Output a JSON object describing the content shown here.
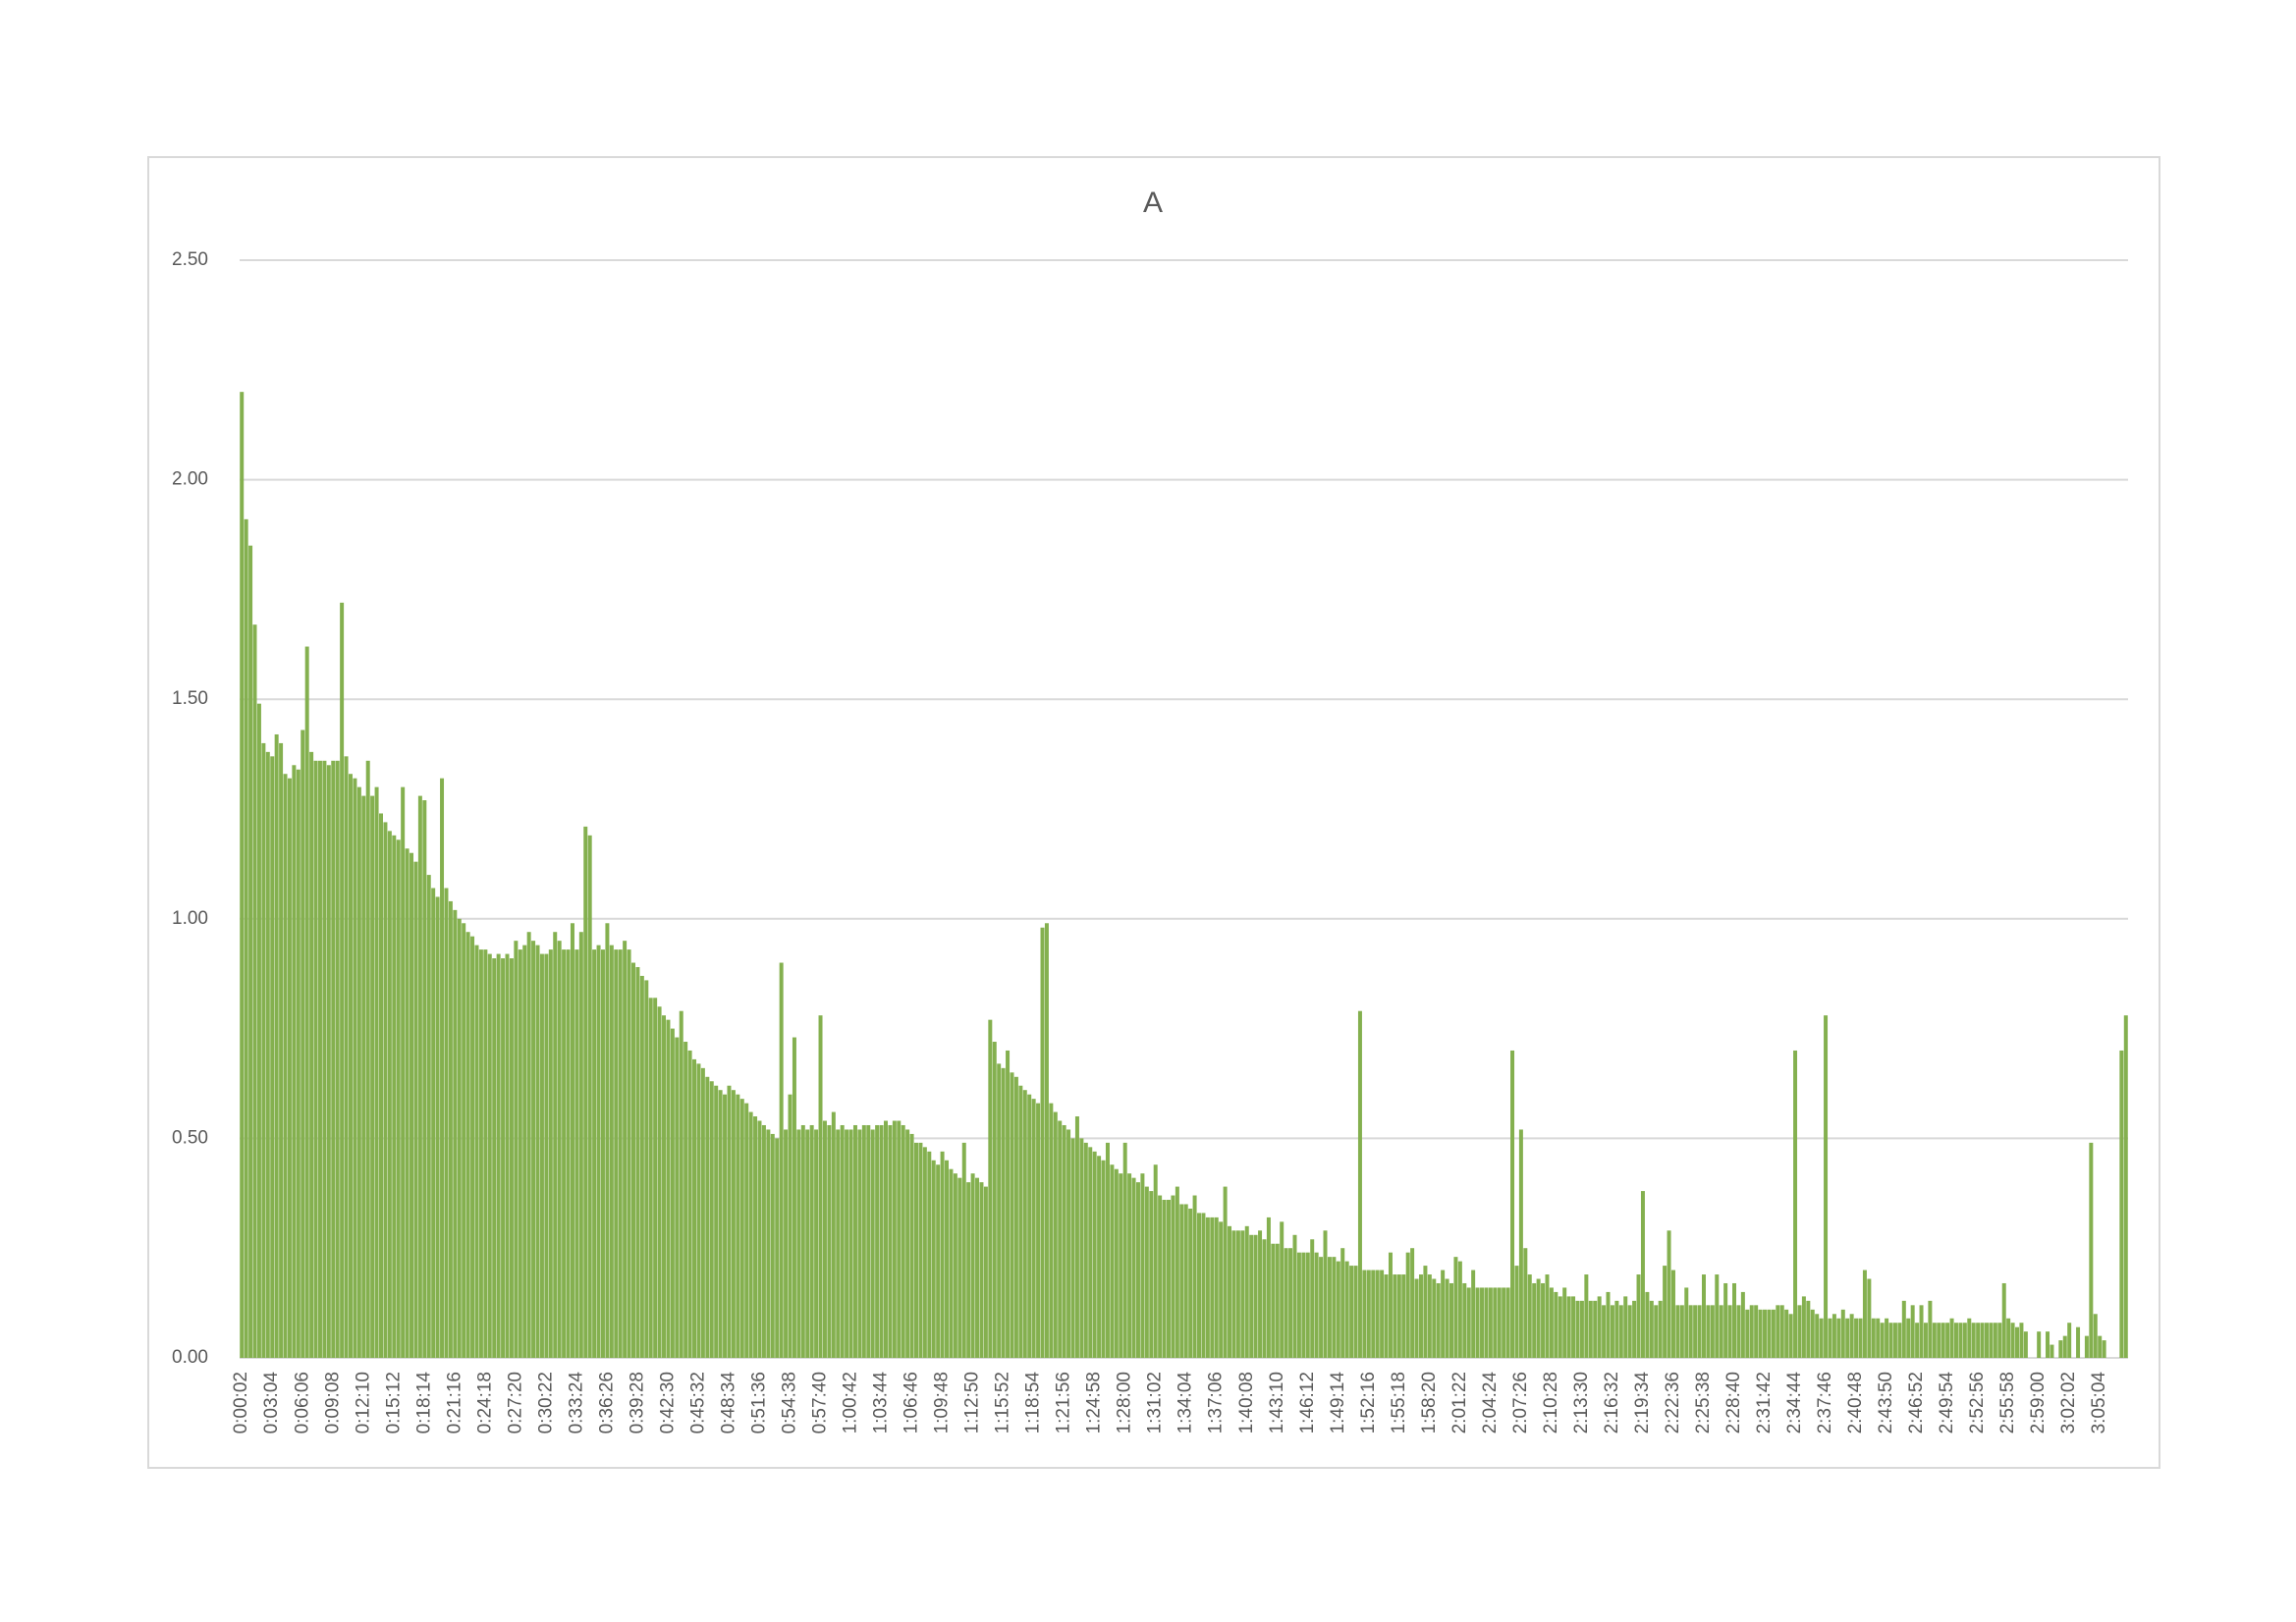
{
  "chart_data": {
    "type": "bar",
    "title": "A",
    "color": "#84b04f",
    "grid": true,
    "ylim": [
      0,
      2.5
    ],
    "yticks": [
      {
        "value": 0,
        "label": "0.00"
      },
      {
        "value": 0.5,
        "label": "0.50"
      },
      {
        "value": 1,
        "label": "1.00"
      },
      {
        "value": 1.5,
        "label": "1.50"
      },
      {
        "value": 2,
        "label": "2.00"
      },
      {
        "value": 2.5,
        "label": "2.50"
      }
    ],
    "categories": [
      "0:00:02",
      null,
      null,
      null,
      null,
      null,
      null,
      "0:03:04",
      null,
      null,
      null,
      null,
      null,
      null,
      "0:06:06",
      null,
      null,
      null,
      null,
      null,
      null,
      "0:09:08",
      null,
      null,
      null,
      null,
      null,
      null,
      "0:12:10",
      null,
      null,
      null,
      null,
      null,
      null,
      "0:15:12",
      null,
      null,
      null,
      null,
      null,
      null,
      "0:18:14",
      null,
      null,
      null,
      null,
      null,
      null,
      "0:21:16",
      null,
      null,
      null,
      null,
      null,
      null,
      "0:24:18",
      null,
      null,
      null,
      null,
      null,
      null,
      "0:27:20",
      null,
      null,
      null,
      null,
      null,
      null,
      "0:30:22",
      null,
      null,
      null,
      null,
      null,
      null,
      "0:33:24",
      null,
      null,
      null,
      null,
      null,
      null,
      "0:36:26",
      null,
      null,
      null,
      null,
      null,
      null,
      "0:39:28",
      null,
      null,
      null,
      null,
      null,
      null,
      "0:42:30",
      null,
      null,
      null,
      null,
      null,
      null,
      "0:45:32",
      null,
      null,
      null,
      null,
      null,
      null,
      "0:48:34",
      null,
      null,
      null,
      null,
      null,
      null,
      "0:51:36",
      null,
      null,
      null,
      null,
      null,
      null,
      "0:54:38",
      null,
      null,
      null,
      null,
      null,
      null,
      "0:57:40",
      null,
      null,
      null,
      null,
      null,
      null,
      "1:00:42",
      null,
      null,
      null,
      null,
      null,
      null,
      "1:03:44",
      null,
      null,
      null,
      null,
      null,
      null,
      "1:06:46",
      null,
      null,
      null,
      null,
      null,
      null,
      "1:09:48",
      null,
      null,
      null,
      null,
      null,
      null,
      "1:12:50",
      null,
      null,
      null,
      null,
      null,
      null,
      "1:15:52",
      null,
      null,
      null,
      null,
      null,
      null,
      "1:18:54",
      null,
      null,
      null,
      null,
      null,
      null,
      "1:21:56",
      null,
      null,
      null,
      null,
      null,
      null,
      "1:24:58",
      null,
      null,
      null,
      null,
      null,
      null,
      "1:28:00",
      null,
      null,
      null,
      null,
      null,
      null,
      "1:31:02",
      null,
      null,
      null,
      null,
      null,
      null,
      "1:34:04",
      null,
      null,
      null,
      null,
      null,
      null,
      "1:37:06",
      null,
      null,
      null,
      null,
      null,
      null,
      "1:40:08",
      null,
      null,
      null,
      null,
      null,
      null,
      "1:43:10",
      null,
      null,
      null,
      null,
      null,
      null,
      "1:46:12",
      null,
      null,
      null,
      null,
      null,
      null,
      "1:49:14",
      null,
      null,
      null,
      null,
      null,
      null,
      "1:52:16",
      null,
      null,
      null,
      null,
      null,
      null,
      "1:55:18",
      null,
      null,
      null,
      null,
      null,
      null,
      "1:58:20",
      null,
      null,
      null,
      null,
      null,
      null,
      "2:01:22",
      null,
      null,
      null,
      null,
      null,
      null,
      "2:04:24",
      null,
      null,
      null,
      null,
      null,
      null,
      "2:07:26",
      null,
      null,
      null,
      null,
      null,
      null,
      "2:10:28",
      null,
      null,
      null,
      null,
      null,
      null,
      "2:13:30",
      null,
      null,
      null,
      null,
      null,
      null,
      "2:16:32",
      null,
      null,
      null,
      null,
      null,
      null,
      "2:19:34",
      null,
      null,
      null,
      null,
      null,
      null,
      "2:22:36",
      null,
      null,
      null,
      null,
      null,
      null,
      "2:25:38",
      null,
      null,
      null,
      null,
      null,
      null,
      "2:28:40",
      null,
      null,
      null,
      null,
      null,
      null,
      "2:31:42",
      null,
      null,
      null,
      null,
      null,
      null,
      "2:34:44",
      null,
      null,
      null,
      null,
      null,
      null,
      "2:37:46",
      null,
      null,
      null,
      null,
      null,
      null,
      "2:40:48",
      null,
      null,
      null,
      null,
      null,
      null,
      "2:43:50",
      null,
      null,
      null,
      null,
      null,
      null,
      "2:46:52",
      null,
      null,
      null,
      null,
      null,
      null,
      "2:49:54",
      null,
      null,
      null,
      null,
      null,
      null,
      "2:52:56",
      null,
      null,
      null,
      null,
      null,
      null,
      "2:55:58",
      null,
      null,
      null,
      null,
      null,
      null,
      "2:59:00",
      null,
      null,
      null,
      null,
      null,
      null,
      "3:02:02",
      null,
      null,
      null,
      null,
      null,
      null,
      "3:05:04",
      null,
      null,
      null,
      null,
      null,
      null
    ],
    "values": [
      2.2,
      1.91,
      1.85,
      1.67,
      1.49,
      1.4,
      1.38,
      1.37,
      1.42,
      1.4,
      1.33,
      1.32,
      1.35,
      1.34,
      1.43,
      1.62,
      1.38,
      1.36,
      1.36,
      1.36,
      1.35,
      1.36,
      1.36,
      1.72,
      1.37,
      1.33,
      1.32,
      1.3,
      1.28,
      1.36,
      1.28,
      1.3,
      1.24,
      1.22,
      1.2,
      1.19,
      1.18,
      1.3,
      1.16,
      1.15,
      1.13,
      1.28,
      1.27,
      1.1,
      1.07,
      1.05,
      1.32,
      1.07,
      1.04,
      1.02,
      1.0,
      0.99,
      0.97,
      0.96,
      0.94,
      0.93,
      0.93,
      0.92,
      0.91,
      0.92,
      0.91,
      0.92,
      0.91,
      0.95,
      0.93,
      0.94,
      0.97,
      0.95,
      0.94,
      0.92,
      0.92,
      0.93,
      0.97,
      0.95,
      0.93,
      0.93,
      0.99,
      0.93,
      0.97,
      1.21,
      1.19,
      0.93,
      0.94,
      0.93,
      0.99,
      0.94,
      0.93,
      0.93,
      0.95,
      0.93,
      0.9,
      0.89,
      0.87,
      0.86,
      0.82,
      0.82,
      0.8,
      0.78,
      0.77,
      0.75,
      0.73,
      0.79,
      0.72,
      0.7,
      0.68,
      0.67,
      0.66,
      0.64,
      0.63,
      0.62,
      0.61,
      0.6,
      0.62,
      0.61,
      0.6,
      0.59,
      0.58,
      0.56,
      0.55,
      0.54,
      0.53,
      0.52,
      0.51,
      0.5,
      0.9,
      0.52,
      0.6,
      0.73,
      0.52,
      0.53,
      0.52,
      0.53,
      0.52,
      0.78,
      0.54,
      0.53,
      0.56,
      0.52,
      0.53,
      0.52,
      0.52,
      0.53,
      0.52,
      0.53,
      0.53,
      0.52,
      0.53,
      0.53,
      0.54,
      0.53,
      0.54,
      0.54,
      0.53,
      0.52,
      0.51,
      0.49,
      0.49,
      0.48,
      0.47,
      0.45,
      0.44,
      0.47,
      0.45,
      0.43,
      0.42,
      0.41,
      0.49,
      0.4,
      0.42,
      0.41,
      0.4,
      0.39,
      0.77,
      0.72,
      0.67,
      0.66,
      0.7,
      0.65,
      0.64,
      0.62,
      0.61,
      0.6,
      0.59,
      0.58,
      0.98,
      0.99,
      0.58,
      0.56,
      0.54,
      0.53,
      0.52,
      0.5,
      0.55,
      0.5,
      0.49,
      0.48,
      0.47,
      0.46,
      0.45,
      0.49,
      0.44,
      0.43,
      0.42,
      0.49,
      0.42,
      0.41,
      0.4,
      0.42,
      0.39,
      0.38,
      0.44,
      0.37,
      0.36,
      0.36,
      0.37,
      0.39,
      0.35,
      0.35,
      0.34,
      0.37,
      0.33,
      0.33,
      0.32,
      0.32,
      0.32,
      0.31,
      0.39,
      0.3,
      0.29,
      0.29,
      0.29,
      0.3,
      0.28,
      0.28,
      0.29,
      0.27,
      0.32,
      0.26,
      0.26,
      0.31,
      0.25,
      0.25,
      0.28,
      0.24,
      0.24,
      0.24,
      0.27,
      0.24,
      0.23,
      0.29,
      0.23,
      0.23,
      0.22,
      0.25,
      0.22,
      0.21,
      0.21,
      0.79,
      0.2,
      0.2,
      0.2,
      0.2,
      0.2,
      0.19,
      0.24,
      0.19,
      0.19,
      0.19,
      0.24,
      0.25,
      0.18,
      0.19,
      0.21,
      0.19,
      0.18,
      0.17,
      0.2,
      0.18,
      0.17,
      0.23,
      0.22,
      0.17,
      0.16,
      0.2,
      0.16,
      0.16,
      0.16,
      0.16,
      0.16,
      0.16,
      0.16,
      0.16,
      0.7,
      0.21,
      0.52,
      0.25,
      0.19,
      0.17,
      0.18,
      0.17,
      0.19,
      0.16,
      0.15,
      0.14,
      0.16,
      0.14,
      0.14,
      0.13,
      0.13,
      0.19,
      0.13,
      0.13,
      0.14,
      0.12,
      0.15,
      0.12,
      0.13,
      0.12,
      0.14,
      0.12,
      0.13,
      0.19,
      0.38,
      0.15,
      0.13,
      0.12,
      0.13,
      0.21,
      0.29,
      0.2,
      0.12,
      0.12,
      0.16,
      0.12,
      0.12,
      0.12,
      0.19,
      0.12,
      0.12,
      0.19,
      0.12,
      0.17,
      0.12,
      0.17,
      0.12,
      0.15,
      0.11,
      0.12,
      0.12,
      0.11,
      0.11,
      0.11,
      0.11,
      0.12,
      0.12,
      0.11,
      0.1,
      0.7,
      0.12,
      0.14,
      0.13,
      0.11,
      0.1,
      0.09,
      0.78,
      0.09,
      0.1,
      0.09,
      0.11,
      0.09,
      0.1,
      0.09,
      0.09,
      0.2,
      0.18,
      0.09,
      0.09,
      0.08,
      0.09,
      0.08,
      0.08,
      0.08,
      0.13,
      0.09,
      0.12,
      0.08,
      0.12,
      0.08,
      0.13,
      0.08,
      0.08,
      0.08,
      0.08,
      0.09,
      0.08,
      0.08,
      0.08,
      0.09,
      0.08,
      0.08,
      0.08,
      0.08,
      0.08,
      0.08,
      0.08,
      0.17,
      0.09,
      0.08,
      0.07,
      0.08,
      0.06,
      0,
      0,
      0.06,
      0,
      0.06,
      0.03,
      0,
      0.04,
      0.05,
      0.08,
      0,
      0.07,
      0,
      0.05,
      0.49,
      0.1,
      0.05,
      0.04,
      0,
      0,
      0,
      0.7,
      0.78
    ]
  }
}
